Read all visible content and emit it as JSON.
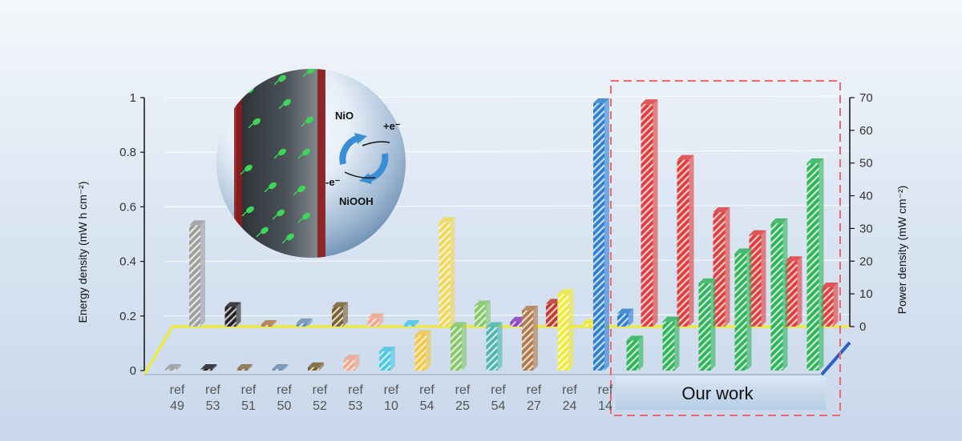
{
  "chart_data": {
    "type": "bar",
    "left_axis": {
      "label": "Energy density (mW h cm⁻²)",
      "ylim": [
        0,
        1
      ],
      "ticks": [
        "0",
        "0.2",
        "0.4",
        "0.6",
        "0.8",
        "1"
      ]
    },
    "right_axis": {
      "label": "Power density (mW cm⁻²)",
      "ylim": [
        0,
        70
      ],
      "ticks": [
        "0",
        "10",
        "20",
        "30",
        "40",
        "50",
        "60",
        "70"
      ]
    },
    "categories": [
      {
        "ref": "ref",
        "num": "49"
      },
      {
        "ref": "ref",
        "num": "53"
      },
      {
        "ref": "ref",
        "num": "51"
      },
      {
        "ref": "ref",
        "num": "50"
      },
      {
        "ref": "ref",
        "num": "52"
      },
      {
        "ref": "ref",
        "num": "53"
      },
      {
        "ref": "ref",
        "num": "10"
      },
      {
        "ref": "ref",
        "num": "54"
      },
      {
        "ref": "ref",
        "num": "25"
      },
      {
        "ref": "ref",
        "num": "54"
      },
      {
        "ref": "ref",
        "num": "27"
      },
      {
        "ref": "ref",
        "num": "24"
      },
      {
        "ref": "ref",
        "num": "14"
      }
    ],
    "reference_energy": [
      0.006,
      0.006,
      0.006,
      0.006,
      0.012,
      0.04,
      0.07,
      0.13,
      0.16,
      0.16,
      0.22,
      0.28,
      0.98
    ],
    "reference_power": [
      31,
      6,
      0.5,
      1,
      6,
      2.5,
      0.5,
      32,
      6.5,
      1.5,
      7,
      0.8,
      4
    ],
    "reference_colors": [
      "#9e9e9e",
      "#222222",
      "#8a6d4a",
      "#6d8fb4",
      "#7a5f2f",
      "#f2a58a",
      "#4cc6e6",
      "#f2c843",
      "#86c76a",
      "#4db5b0",
      "#b07a4a",
      "#f0ea3c",
      "#2f7fd0"
    ],
    "reference_power_colors": [
      "#9e9e9e",
      "#222222",
      "#b07a4a",
      "#6d8fb4",
      "#7a5f2f",
      "#f2a58a",
      "#4cc6e6",
      "#f2d75a",
      "#86c76a",
      "#8b3cbf",
      "#c0392b",
      "#f0ea3c",
      "#2f7fd0"
    ],
    "our_work": {
      "label": "Our work",
      "energy": [
        0.11,
        0.18,
        0.32,
        0.43,
        0.54,
        0.76
      ],
      "power": [
        68,
        51,
        35,
        28,
        20,
        12
      ],
      "energy_color": "#2fb45a",
      "power_color": "#e03c3c"
    }
  },
  "inset": {
    "top_label": "NiO",
    "bottom_label": "NiOOH",
    "plus_label": "+e⁻",
    "minus_label": "-e⁻"
  }
}
